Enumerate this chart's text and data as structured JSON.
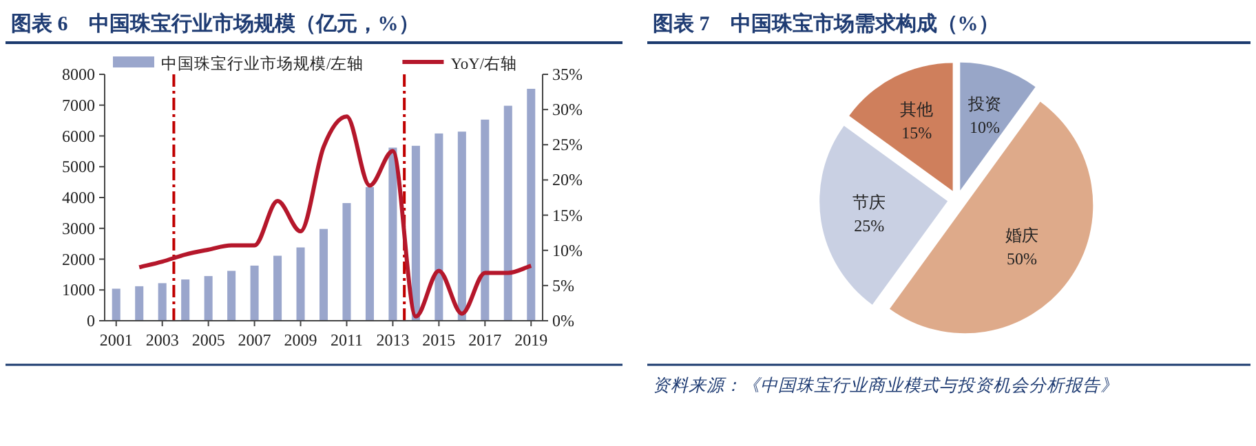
{
  "chart_data": [
    {
      "type": "bar",
      "title": "图表 6　中国珠宝行业市场规模（亿元，%）",
      "x": [
        2001,
        2002,
        2003,
        2004,
        2005,
        2006,
        2007,
        2008,
        2009,
        2010,
        2011,
        2012,
        2013,
        2014,
        2015,
        2016,
        2017,
        2018,
        2019
      ],
      "series": [
        {
          "name": "中国珠宝行业市场规模/左轴",
          "type": "bar",
          "color": "#9aa6cc",
          "values": [
            1040,
            1120,
            1220,
            1340,
            1450,
            1620,
            1790,
            2110,
            2380,
            2980,
            3820,
            4340,
            5620,
            5680,
            6080,
            6140,
            6530,
            6980,
            7530
          ]
        },
        {
          "name": "YoY/右轴",
          "type": "line",
          "axis": "y2",
          "color": "#b5172b",
          "values": [
            null,
            7.6,
            8.4,
            9.4,
            10.1,
            10.7,
            10.7,
            17.0,
            12.7,
            24.7,
            29.0,
            19.2,
            24.1,
            0.6,
            7.1,
            1.0,
            6.8,
            6.8,
            7.8
          ]
        }
      ],
      "xlim": [
        2000.5,
        2019.5
      ],
      "xticks": [
        2001,
        2003,
        2005,
        2007,
        2009,
        2011,
        2013,
        2015,
        2017,
        2019
      ],
      "ylim": [
        0,
        8000
      ],
      "yticks": [
        0,
        1000,
        2000,
        3000,
        4000,
        5000,
        6000,
        7000,
        8000
      ],
      "y2lim": [
        0,
        35
      ],
      "y2ticks": [
        {
          "value": 0,
          "label": "0%"
        },
        {
          "value": 5,
          "label": "5%"
        },
        {
          "value": 10,
          "label": "10%"
        },
        {
          "value": 15,
          "label": "15%"
        },
        {
          "value": 20,
          "label": "20%"
        },
        {
          "value": 25,
          "label": "25%"
        },
        {
          "value": 30,
          "label": "30%"
        },
        {
          "value": 35,
          "label": "35%"
        }
      ],
      "ref_lines": [
        {
          "axis": "x",
          "value": 2003.5,
          "color": "#c00000",
          "line_style": "dashed"
        },
        {
          "axis": "x",
          "value": 2013.5,
          "color": "#c00000",
          "line_style": "dashed"
        }
      ],
      "legend": "top",
      "grid": false
    },
    {
      "type": "pie",
      "title": "图表 7　中国珠宝市场需求构成（%）",
      "categories": [
        "投资",
        "婚庆",
        "节庆",
        "其他"
      ],
      "values": [
        10,
        50,
        25,
        15
      ],
      "colors": [
        "#98a6c8",
        "#deaa8a",
        "#c9d0e3",
        "#cf7f5c"
      ],
      "value_labels": [
        "10%",
        "50%",
        "25%",
        "15%"
      ],
      "annotations": [
        "资料来源：《中国珠宝行业商业模式与投资机会分析报告》"
      ]
    }
  ]
}
